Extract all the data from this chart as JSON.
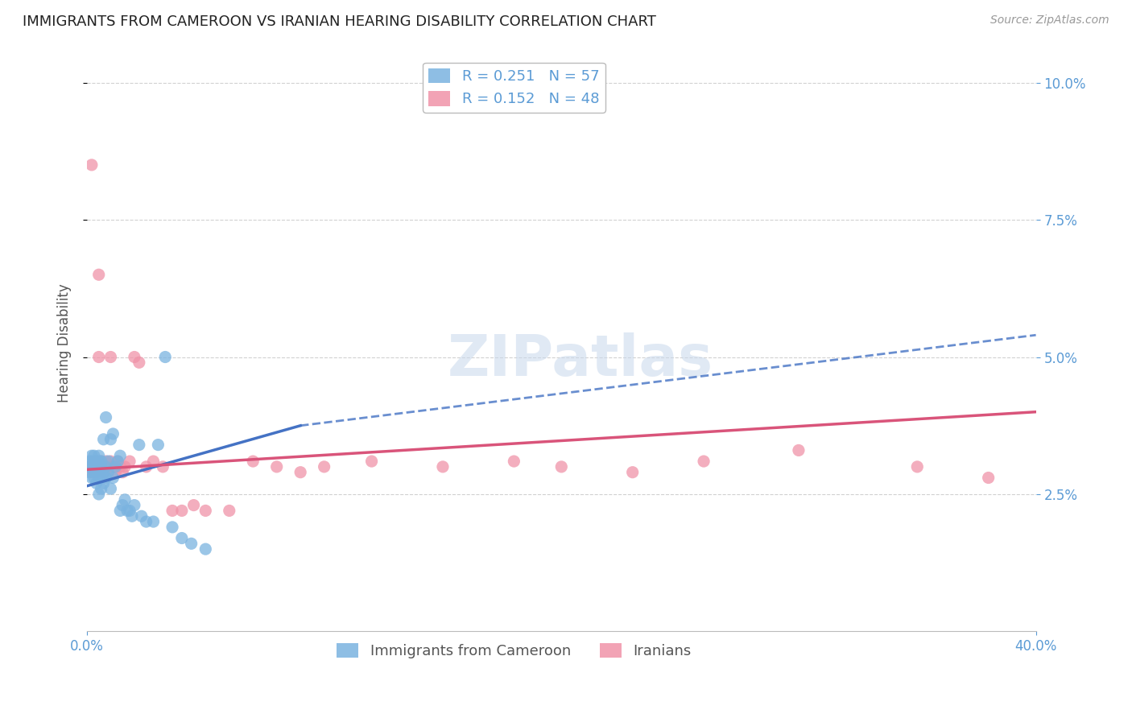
{
  "title": "IMMIGRANTS FROM CAMEROON VS IRANIAN HEARING DISABILITY CORRELATION CHART",
  "source": "Source: ZipAtlas.com",
  "ylabel": "Hearing Disability",
  "series1_color": "#7ab3e0",
  "series2_color": "#f093a8",
  "trendline1_color": "#4472c4",
  "trendline2_color": "#d9547a",
  "watermark": "ZIPatlas",
  "background_color": "#ffffff",
  "grid_color": "#cccccc",
  "axis_label_color": "#5b9bd5",
  "x_range": [
    0.0,
    0.4
  ],
  "y_range": [
    0.0,
    0.105
  ],
  "y_ticks": [
    0.025,
    0.05,
    0.075,
    0.1
  ],
  "x_ticks": [
    0.0,
    0.4
  ],
  "cameroon_x": [
    0.001,
    0.001,
    0.001,
    0.002,
    0.002,
    0.002,
    0.002,
    0.003,
    0.003,
    0.003,
    0.003,
    0.003,
    0.004,
    0.004,
    0.004,
    0.004,
    0.005,
    0.005,
    0.005,
    0.005,
    0.005,
    0.006,
    0.006,
    0.006,
    0.006,
    0.007,
    0.007,
    0.007,
    0.008,
    0.008,
    0.008,
    0.009,
    0.009,
    0.01,
    0.01,
    0.011,
    0.011,
    0.012,
    0.013,
    0.014,
    0.014,
    0.015,
    0.016,
    0.017,
    0.018,
    0.019,
    0.02,
    0.022,
    0.023,
    0.025,
    0.028,
    0.03,
    0.033,
    0.036,
    0.04,
    0.044,
    0.05
  ],
  "cameroon_y": [
    0.03,
    0.029,
    0.031,
    0.028,
    0.03,
    0.031,
    0.032,
    0.028,
    0.029,
    0.03,
    0.031,
    0.032,
    0.027,
    0.029,
    0.03,
    0.031,
    0.025,
    0.028,
    0.03,
    0.031,
    0.032,
    0.026,
    0.028,
    0.03,
    0.031,
    0.027,
    0.029,
    0.035,
    0.028,
    0.03,
    0.039,
    0.029,
    0.031,
    0.026,
    0.035,
    0.028,
    0.036,
    0.03,
    0.031,
    0.022,
    0.032,
    0.023,
    0.024,
    0.022,
    0.022,
    0.021,
    0.023,
    0.034,
    0.021,
    0.02,
    0.02,
    0.034,
    0.05,
    0.019,
    0.017,
    0.016,
    0.015
  ],
  "iranian_x": [
    0.001,
    0.002,
    0.002,
    0.003,
    0.003,
    0.004,
    0.004,
    0.005,
    0.005,
    0.006,
    0.006,
    0.007,
    0.008,
    0.008,
    0.009,
    0.01,
    0.011,
    0.012,
    0.013,
    0.014,
    0.015,
    0.016,
    0.018,
    0.02,
    0.022,
    0.025,
    0.028,
    0.032,
    0.036,
    0.04,
    0.045,
    0.05,
    0.06,
    0.07,
    0.08,
    0.09,
    0.1,
    0.12,
    0.15,
    0.18,
    0.2,
    0.23,
    0.26,
    0.3,
    0.35,
    0.38,
    0.005,
    0.01
  ],
  "iranian_y": [
    0.03,
    0.029,
    0.085,
    0.031,
    0.03,
    0.029,
    0.031,
    0.03,
    0.065,
    0.031,
    0.03,
    0.029,
    0.031,
    0.03,
    0.03,
    0.031,
    0.03,
    0.029,
    0.031,
    0.03,
    0.029,
    0.03,
    0.031,
    0.05,
    0.049,
    0.03,
    0.031,
    0.03,
    0.022,
    0.022,
    0.023,
    0.022,
    0.022,
    0.031,
    0.03,
    0.029,
    0.03,
    0.031,
    0.03,
    0.031,
    0.03,
    0.029,
    0.031,
    0.033,
    0.03,
    0.028,
    0.05,
    0.05
  ],
  "trendline1_x0": 0.0,
  "trendline1_y0": 0.0265,
  "trendline1_x_solid_end": 0.09,
  "trendline1_y_solid_end": 0.0375,
  "trendline1_x_dash_end": 0.4,
  "trendline1_y_dash_end": 0.054,
  "trendline2_x0": 0.0,
  "trendline2_y0": 0.0295,
  "trendline2_x_end": 0.4,
  "trendline2_y_end": 0.04
}
